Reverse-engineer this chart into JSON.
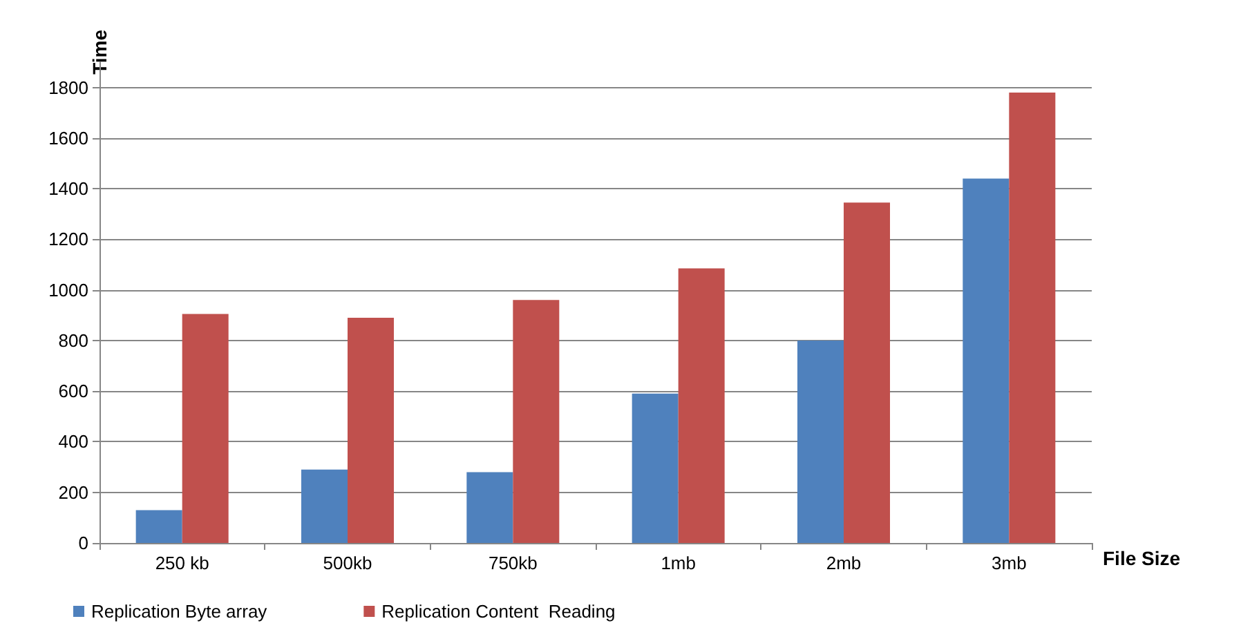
{
  "chart_data": {
    "type": "bar",
    "xlabel": "File Size",
    "ylabel": "Time",
    "categories": [
      "250 kb",
      "500kb",
      "750kb",
      "1mb",
      "2mb",
      "3mb"
    ],
    "series": [
      {
        "name": "Replication Byte array",
        "color": "#4f81bd",
        "values": [
          130,
          290,
          280,
          590,
          800,
          1440
        ]
      },
      {
        "name": "Replication Content  Reading",
        "color": "#c0504d",
        "values": [
          905,
          890,
          960,
          1085,
          1345,
          1780
        ]
      }
    ],
    "ylim": [
      0,
      1900
    ],
    "yticks": [
      0,
      200,
      400,
      600,
      800,
      1000,
      1200,
      1400,
      1600,
      1800
    ],
    "grid": "y",
    "legend": "bottom left"
  }
}
